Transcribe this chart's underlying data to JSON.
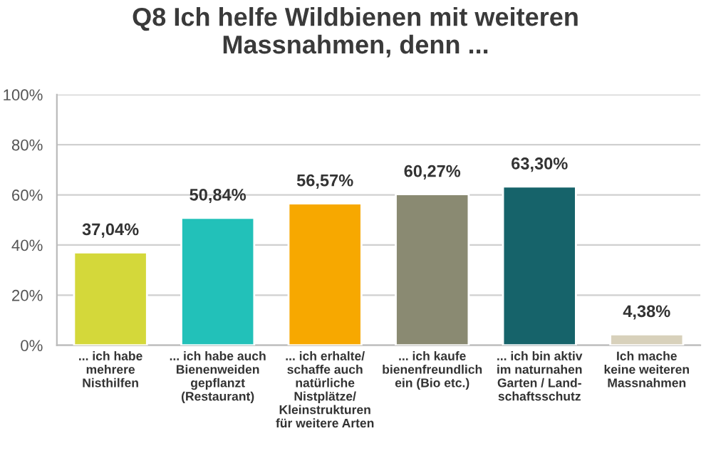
{
  "chart_data": {
    "type": "bar",
    "title": "Q8 Ich helfe Wildbienen mit weiteren\nMassnahmen, denn ...",
    "categories": [
      "... ich habe\nmehrere\nNisthilfen",
      "... ich habe auch\nBienenweiden\ngepflanzt\n(Restaurant)",
      "... ich erhalte/\nschaffe auch\nnatürliche\nNistplätze/\nKleinstrukturen\nfür weitere Arten",
      "... ich kaufe\nbienenfreundlich\nein (Bio etc.)",
      "... ich bin aktiv\nim naturnahen\nGarten / Land-\nschaftsschutz",
      "Ich mache\nkeine weiteren\nMassnahmen"
    ],
    "values": [
      37.04,
      50.84,
      56.57,
      60.27,
      63.3,
      4.38
    ],
    "value_labels": [
      "37,04%",
      "50,84%",
      "56,57%",
      "60,27%",
      "63,30%",
      "4,38%"
    ],
    "colors": [
      "#d4d83a",
      "#22c1b9",
      "#f7a800",
      "#8a8a72",
      "#16636a",
      "#d8d1bb"
    ],
    "ylim": [
      0,
      100
    ],
    "yticks": [
      {
        "value": 0,
        "label": "0%"
      },
      {
        "value": 20,
        "label": "20%"
      },
      {
        "value": 40,
        "label": "40%"
      },
      {
        "value": 60,
        "label": "60%"
      },
      {
        "value": 80,
        "label": "80%"
      },
      {
        "value": 100,
        "label": "100%"
      }
    ],
    "grid": "y"
  }
}
